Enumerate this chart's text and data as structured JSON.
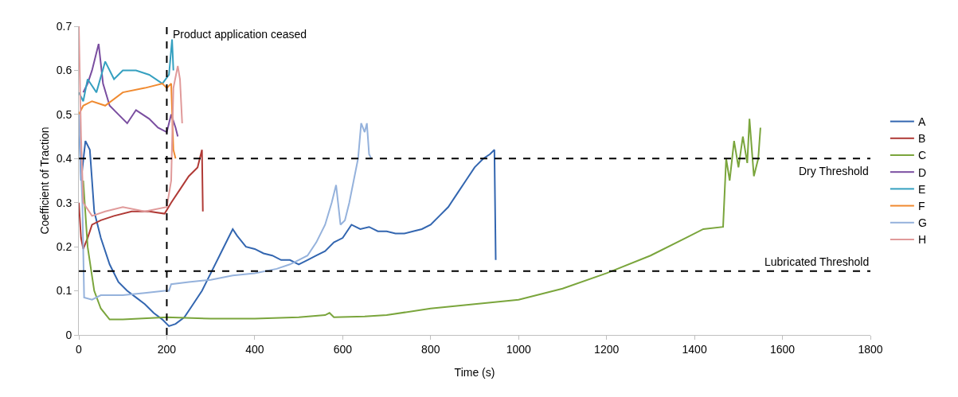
{
  "chart_data": {
    "type": "line",
    "xlabel": "Time (s)",
    "ylabel": "Coefficient of Traction",
    "xlim": [
      0,
      1800
    ],
    "xticks": [
      0,
      200,
      400,
      600,
      800,
      1000,
      1200,
      1400,
      1600,
      1800
    ],
    "ylim": [
      0,
      0.7
    ],
    "yticks": [
      0,
      0.1,
      0.2,
      0.3,
      0.4,
      0.5,
      0.6,
      0.7
    ],
    "grid": false,
    "legend": "right",
    "marker": "none",
    "line_style": "solid",
    "ref_lines": [
      {
        "axis": "x",
        "value": 200,
        "label": "Product application ceased",
        "color": "#000000",
        "line_style": "dashed"
      },
      {
        "axis": "y",
        "value": 0.4,
        "label": "Dry Threshold",
        "color": "#000000",
        "line_style": "dashed"
      },
      {
        "axis": "y",
        "value": 0.145,
        "label": "Lubricated Threshold",
        "color": "#000000",
        "line_style": "dashed"
      }
    ],
    "series": [
      {
        "name": "A",
        "color": "#3366b0",
        "x": [
          0,
          5,
          15,
          25,
          35,
          50,
          70,
          90,
          110,
          130,
          150,
          170,
          190,
          205,
          220,
          240,
          260,
          280,
          300,
          320,
          340,
          350,
          360,
          380,
          400,
          420,
          440,
          460,
          480,
          500,
          520,
          540,
          560,
          580,
          600,
          620,
          640,
          660,
          680,
          700,
          720,
          740,
          760,
          780,
          800,
          820,
          840,
          860,
          880,
          900,
          920,
          935,
          945,
          948
        ],
        "values": [
          0.5,
          0.35,
          0.44,
          0.42,
          0.28,
          0.22,
          0.16,
          0.12,
          0.1,
          0.085,
          0.07,
          0.05,
          0.035,
          0.02,
          0.025,
          0.04,
          0.07,
          0.1,
          0.14,
          0.18,
          0.22,
          0.24,
          0.225,
          0.2,
          0.195,
          0.185,
          0.18,
          0.17,
          0.17,
          0.16,
          0.17,
          0.18,
          0.19,
          0.21,
          0.22,
          0.25,
          0.24,
          0.245,
          0.235,
          0.235,
          0.23,
          0.23,
          0.235,
          0.24,
          0.25,
          0.27,
          0.29,
          0.32,
          0.35,
          0.38,
          0.4,
          0.41,
          0.42,
          0.17
        ]
      },
      {
        "name": "B",
        "color": "#b03a36",
        "x": [
          0,
          5,
          10,
          20,
          30,
          50,
          80,
          120,
          160,
          195,
          210,
          230,
          250,
          270,
          280,
          282
        ],
        "values": [
          0.3,
          0.22,
          0.195,
          0.22,
          0.25,
          0.26,
          0.27,
          0.28,
          0.28,
          0.275,
          0.3,
          0.33,
          0.36,
          0.38,
          0.42,
          0.28
        ]
      },
      {
        "name": "C",
        "color": "#7aa53c",
        "x": [
          10,
          20,
          35,
          50,
          70,
          100,
          200,
          300,
          400,
          500,
          560,
          570,
          580,
          650,
          700,
          800,
          900,
          1000,
          1100,
          1200,
          1300,
          1380,
          1420,
          1465,
          1472,
          1480,
          1490,
          1500,
          1510,
          1520,
          1525,
          1535,
          1545,
          1550
        ],
        "values": [
          0.35,
          0.2,
          0.1,
          0.06,
          0.035,
          0.035,
          0.04,
          0.037,
          0.037,
          0.04,
          0.045,
          0.05,
          0.04,
          0.042,
          0.045,
          0.06,
          0.07,
          0.08,
          0.105,
          0.14,
          0.18,
          0.22,
          0.24,
          0.245,
          0.4,
          0.35,
          0.44,
          0.38,
          0.45,
          0.39,
          0.49,
          0.36,
          0.4,
          0.47
        ]
      },
      {
        "name": "D",
        "color": "#7a4ea0",
        "x": [
          10,
          20,
          30,
          45,
          55,
          70,
          90,
          110,
          130,
          160,
          180,
          200,
          210,
          220,
          225
        ],
        "values": [
          0.55,
          0.57,
          0.6,
          0.66,
          0.57,
          0.52,
          0.5,
          0.48,
          0.51,
          0.49,
          0.47,
          0.46,
          0.5,
          0.47,
          0.45
        ]
      },
      {
        "name": "E",
        "color": "#35a0c0",
        "x": [
          0,
          10,
          20,
          40,
          60,
          80,
          100,
          130,
          160,
          190,
          205,
          212,
          215
        ],
        "values": [
          0.55,
          0.53,
          0.58,
          0.55,
          0.62,
          0.58,
          0.6,
          0.6,
          0.59,
          0.57,
          0.59,
          0.67,
          0.6
        ]
      },
      {
        "name": "F",
        "color": "#f08a30",
        "x": [
          0,
          10,
          30,
          60,
          100,
          150,
          190,
          200,
          210,
          215,
          220
        ],
        "values": [
          0.5,
          0.52,
          0.53,
          0.52,
          0.55,
          0.56,
          0.57,
          0.56,
          0.57,
          0.42,
          0.4
        ]
      },
      {
        "name": "G",
        "color": "#95b2dc",
        "x": [
          0,
          8,
          12,
          30,
          50,
          100,
          150,
          195,
          205,
          210,
          250,
          300,
          350,
          400,
          450,
          480,
          500,
          520,
          540,
          560,
          575,
          585,
          595,
          605,
          615,
          625,
          635,
          642,
          650,
          655,
          660,
          665
        ],
        "values": [
          0.5,
          0.3,
          0.085,
          0.08,
          0.09,
          0.09,
          0.095,
          0.1,
          0.1,
          0.115,
          0.12,
          0.125,
          0.135,
          0.14,
          0.15,
          0.16,
          0.17,
          0.18,
          0.21,
          0.25,
          0.3,
          0.34,
          0.25,
          0.26,
          0.3,
          0.35,
          0.4,
          0.48,
          0.46,
          0.48,
          0.41,
          0.4
        ]
      },
      {
        "name": "H",
        "color": "#e09a9a",
        "x": [
          0,
          5,
          10,
          30,
          60,
          100,
          150,
          200,
          210,
          215,
          225,
          230,
          235
        ],
        "values": [
          0.7,
          0.45,
          0.3,
          0.27,
          0.28,
          0.29,
          0.28,
          0.29,
          0.35,
          0.56,
          0.61,
          0.58,
          0.48
        ]
      }
    ]
  }
}
